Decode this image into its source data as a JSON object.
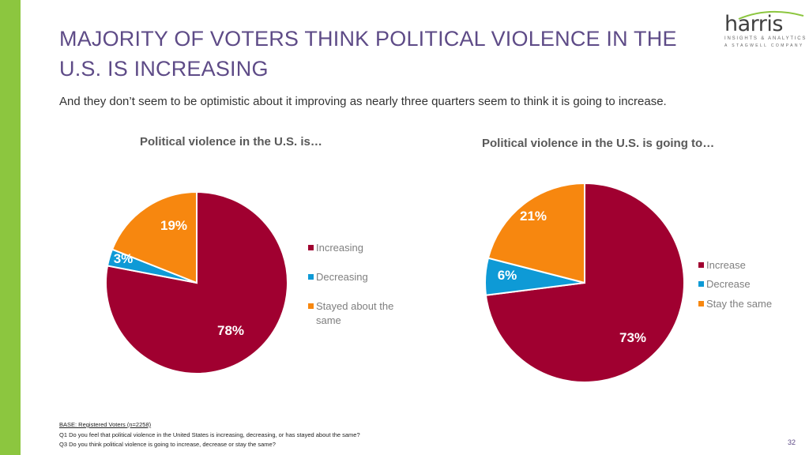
{
  "page": {
    "title": "MAJORITY OF VOTERS THINK POLITICAL VIOLENCE IN THE U.S. IS INCREASING",
    "subtitle": "And they don’t seem to be optimistic about it improving as nearly three quarters seem to think it is going to increase.",
    "page_number": "32"
  },
  "logo": {
    "word": "harris",
    "tagline": "INSIGHTS & ANALYTICS",
    "subline": "A STAGWELL COMPANY"
  },
  "footer": {
    "base": "BASE: Registered Voters (n=2258)",
    "q1": "Q1 Do you feel that political violence in the United States is increasing, decreasing, or has stayed about the same?",
    "q3": "Q3 Do you think political violence is going to increase, decrease or stay the same?"
  },
  "colors": {
    "increase": "#a00030",
    "decrease": "#0e9ad6",
    "same": "#f7870f"
  },
  "chart_data": [
    {
      "type": "pie",
      "title": "Political violence in the U.S. is…",
      "labels": [
        "Increasing",
        "Decreasing",
        "Stayed about the same"
      ],
      "values": [
        78,
        3,
        19
      ],
      "data_labels": [
        "78%",
        "3%",
        "19%"
      ],
      "legend": [
        "Increasing",
        "Decreasing",
        "Stayed about the same"
      ],
      "legend_position": "right"
    },
    {
      "type": "pie",
      "title": "Political violence in the U.S. is going to…",
      "labels": [
        "Increase",
        "Decrease",
        "Stay the same"
      ],
      "values": [
        73,
        6,
        21
      ],
      "data_labels": [
        "73%",
        "6%",
        "21%"
      ],
      "legend": [
        "Increase",
        "Decrease",
        "Stay the same"
      ],
      "legend_position": "right"
    }
  ]
}
